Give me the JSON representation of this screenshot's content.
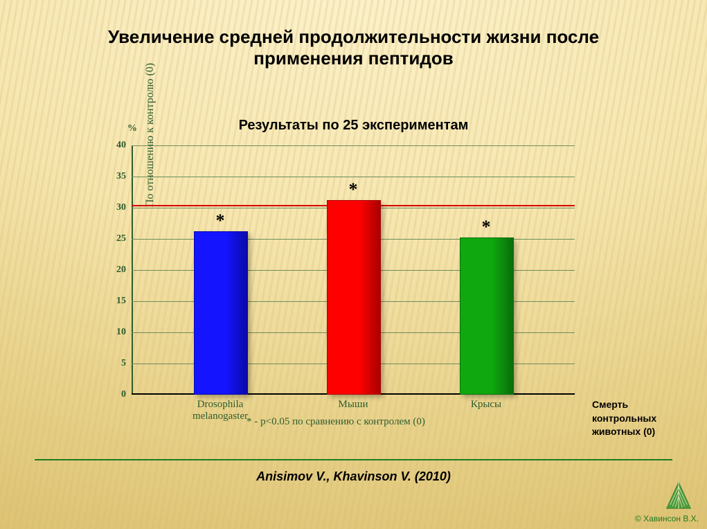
{
  "title": {
    "line1": "Увеличение средней продолжительности жизни после",
    "line2": "применения пептидов",
    "fontsize": 26
  },
  "subtitle": {
    "text": "Результаты по 25 экспериментам",
    "fontsize": 20
  },
  "chart": {
    "type": "bar",
    "yaxis": {
      "label": "По отношению к контролю (0)",
      "unit": "%",
      "min": 0,
      "max": 40,
      "tick_step": 5,
      "label_fontsize": 16,
      "tick_fontsize": 14,
      "color": "#2e5c2e"
    },
    "grid_color": "#6e8c5a",
    "baseline_color": "#000000",
    "reference_line": {
      "value": 30.5,
      "color": "#d40000",
      "width": 2
    },
    "bars": [
      {
        "label": "Drosophila\nmelanogaster",
        "value": 26,
        "color": "#1414ff",
        "border": "#0a0aa8",
        "star": "*"
      },
      {
        "label": "Мыши",
        "value": 31,
        "color": "#ff0000",
        "border": "#a80000",
        "star": "*"
      },
      {
        "label": "Крысы",
        "value": 25,
        "color": "#0fa80f",
        "border": "#0a6e0a",
        "star": "*"
      }
    ],
    "bar_width_pct": 12,
    "bar_positions_pct": [
      20,
      50,
      80
    ],
    "xlabel_fontsize": 15,
    "star_fontsize": 26,
    "footnote": {
      "symbol": "*",
      "text": " - p<0.05 по сравнению с контролем (0)",
      "fontsize": 15
    }
  },
  "side_note": {
    "line1": "Смерть",
    "line2": "контрольных",
    "line3": "животных (0)"
  },
  "divider_color": "#1f7a1f",
  "citation": {
    "text": "Anisimov V., Khavinson V. (2010)",
    "fontsize": 18
  },
  "copyright": {
    "text": "© Хавинсон В.Х.",
    "color": "#1f7a1f"
  },
  "logo_color": "#4a9a3a"
}
